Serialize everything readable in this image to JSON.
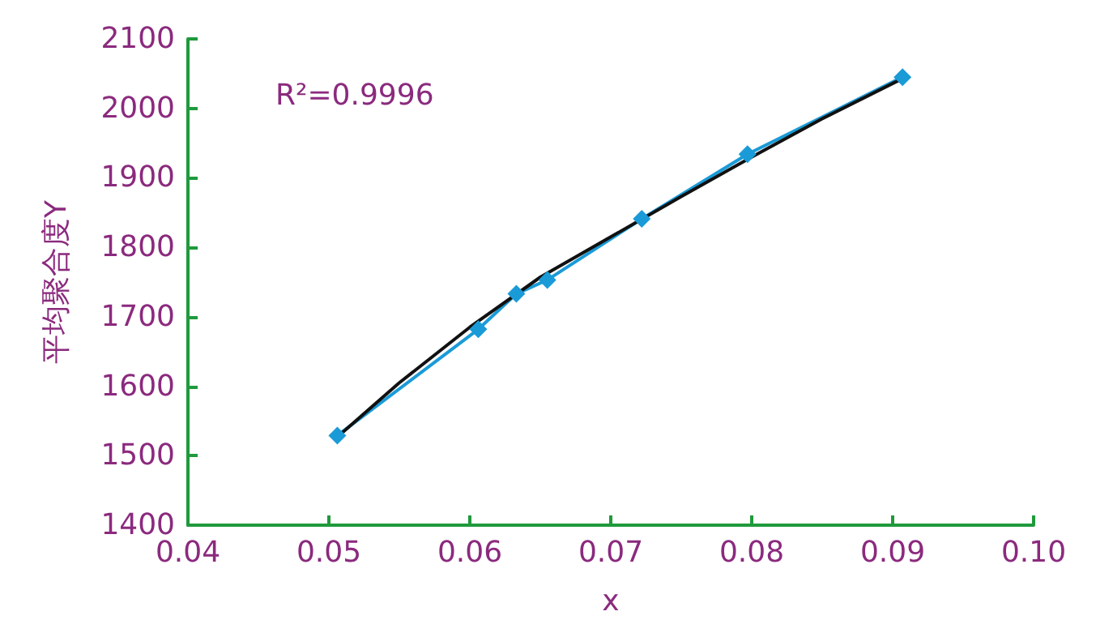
{
  "chart_data": {
    "type": "line",
    "xlabel": "x",
    "ylabel": "平均聚合度Y",
    "annotations": [
      "R²=0.9996"
    ],
    "x": [
      0.0506,
      0.0606,
      0.0633,
      0.0655,
      0.0722,
      0.0797,
      0.0907
    ],
    "series": [
      {
        "color": "#1a9bd7",
        "marker": "diamond",
        "values": [
          1529,
          1682,
          1733,
          1753,
          1841,
          1934,
          2045
        ]
      },
      {
        "color": "#111111",
        "marker": "none",
        "x": [
          0.0506,
          0.055,
          0.06,
          0.065,
          0.07,
          0.075,
          0.08,
          0.085,
          0.0907
        ],
        "values": [
          1527,
          1605,
          1685,
          1757,
          1815,
          1873,
          1930,
          1985,
          2043
        ]
      }
    ],
    "xlim": [
      0.04,
      0.1
    ],
    "xticks": [
      0.04,
      0.05,
      0.06,
      0.07,
      0.08,
      0.09,
      {
        "value": 0.1,
        "label": "0.10"
      }
    ],
    "ylim": [
      1400,
      2100
    ],
    "yticks": [
      1400,
      1500,
      1600,
      1700,
      1800,
      1900,
      2000,
      2100
    ],
    "grid": false
  }
}
